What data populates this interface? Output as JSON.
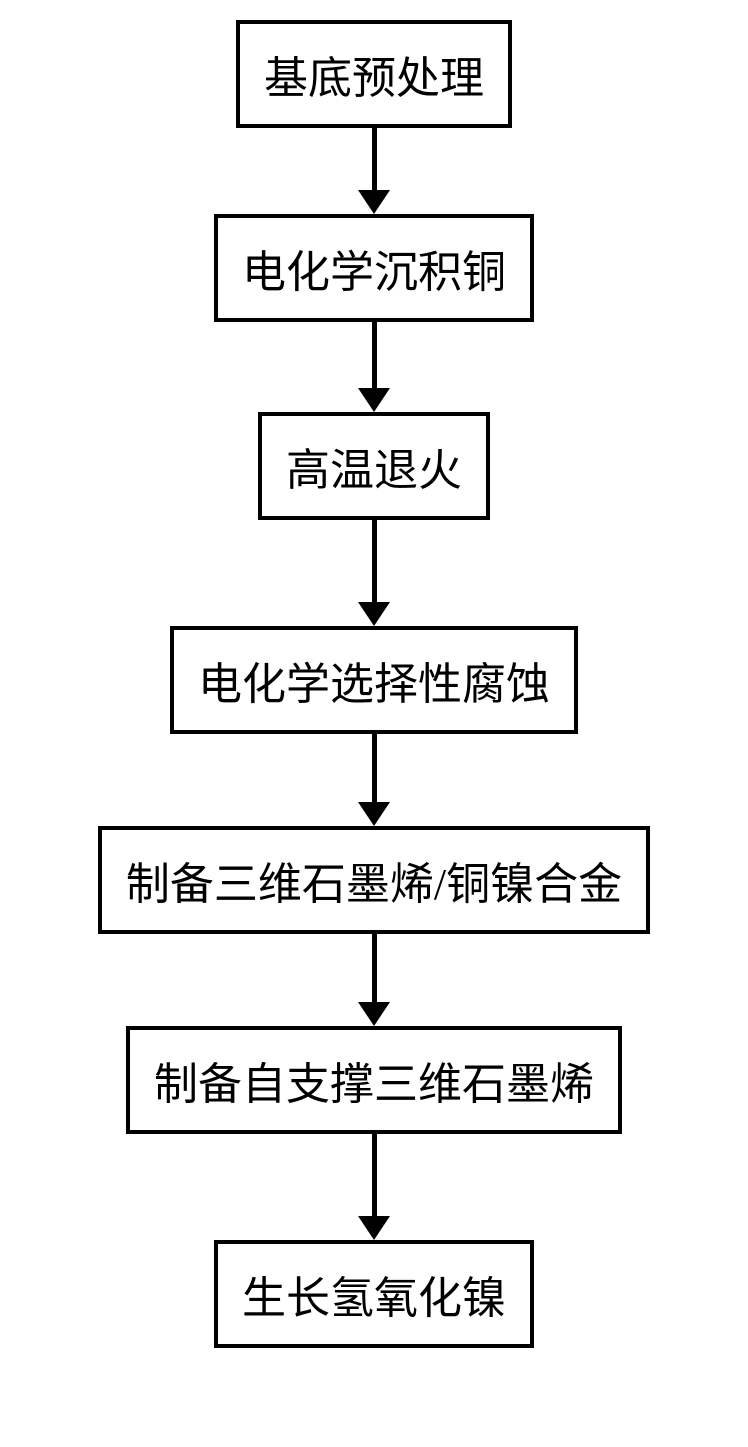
{
  "flowchart": {
    "type": "flowchart",
    "background_color": "#ffffff",
    "box_border_color": "#000000",
    "box_border_width": 4,
    "arrow_color": "#000000",
    "arrow_line_width": 5,
    "text_color": "#000000",
    "font_family": "SimSun",
    "steps": [
      {
        "label": "基底预处理",
        "fontsize": 44,
        "arrow_height": 62
      },
      {
        "label": "电化学沉积铜",
        "fontsize": 44,
        "arrow_height": 66
      },
      {
        "label": "高温退火",
        "fontsize": 44,
        "arrow_height": 82
      },
      {
        "label": "电化学选择性腐蚀",
        "fontsize": 44,
        "arrow_height": 68
      },
      {
        "label": "制备三维石墨烯/铜镍合金",
        "fontsize": 44,
        "arrow_height": 68
      },
      {
        "label": "制备自支撑三维石墨烯",
        "fontsize": 44,
        "arrow_height": 82
      },
      {
        "label": "生长氢氧化镍",
        "fontsize": 44,
        "arrow_height": 0
      }
    ]
  }
}
